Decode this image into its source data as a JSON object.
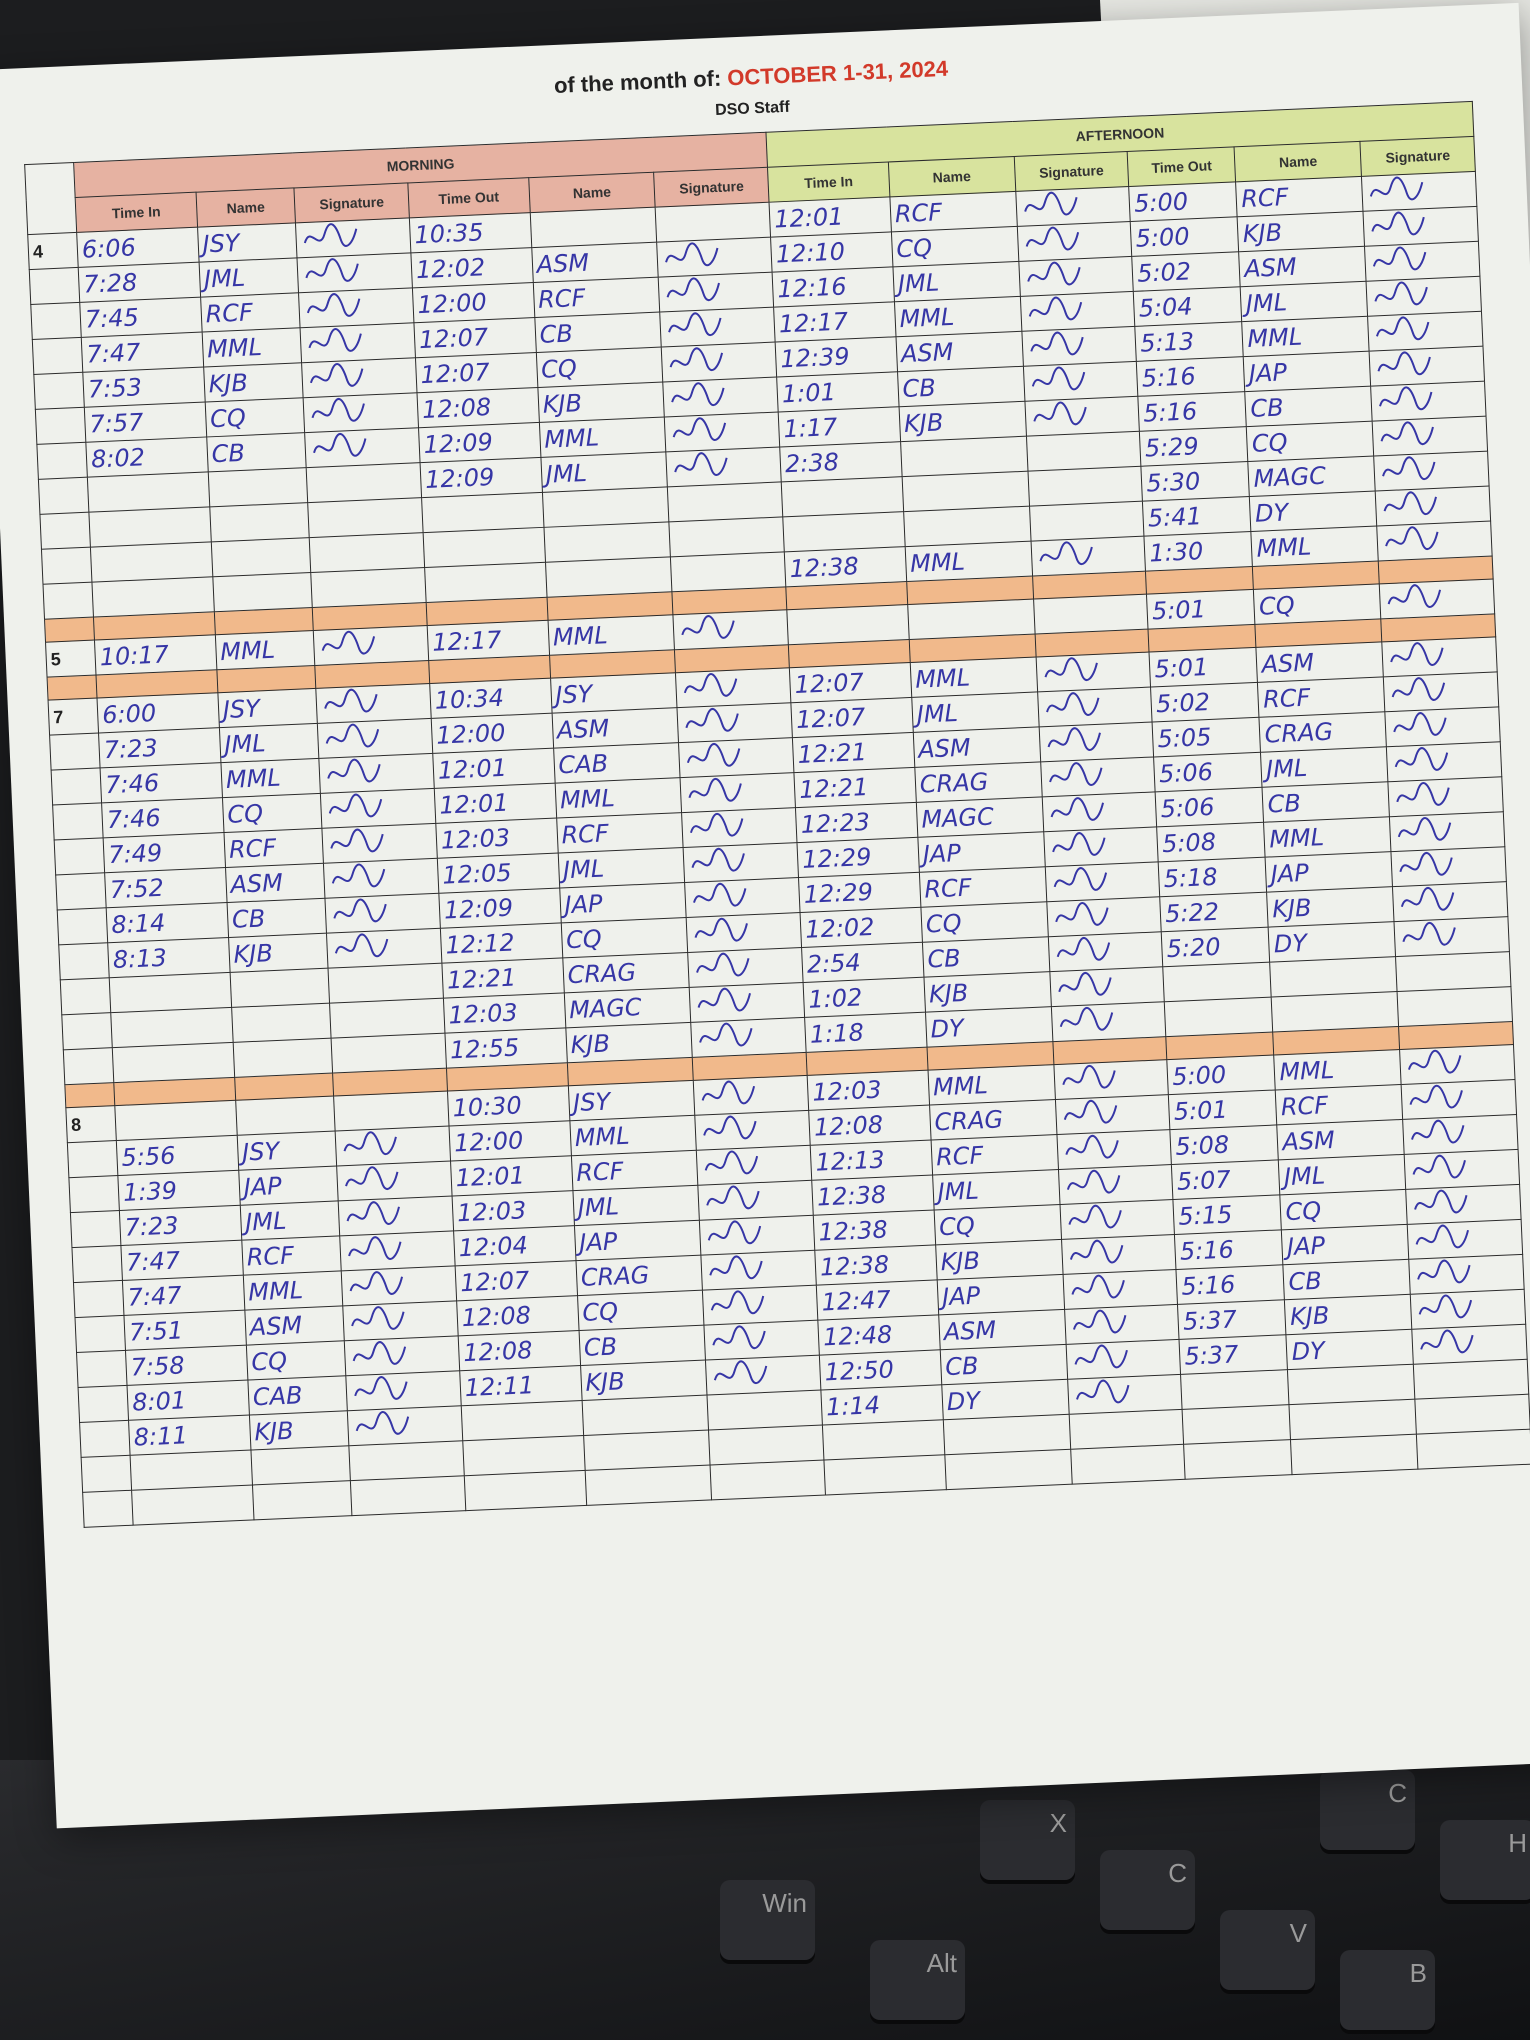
{
  "header": {
    "title_prefix": "of the month of:",
    "month": "OCTOBER 1-31, 2024",
    "subtitle": "DSO Staff"
  },
  "sections": {
    "morning": "MORNING",
    "afternoon": "AFTERNOON"
  },
  "columns": [
    "Time In",
    "Name",
    "Signature",
    "Time Out",
    "Name",
    "Signature",
    "Time In",
    "Name",
    "Signature",
    "Time Out",
    "Name",
    "Signature"
  ],
  "colors": {
    "morning": "#e6b2a2",
    "afternoon": "#d8e39e",
    "band": "#f1b98b",
    "ink": "#3636a6"
  },
  "days": [
    {
      "day": "4",
      "rows": [
        [
          "6:06",
          "JSY",
          "10:35",
          "",
          "12:01",
          "RCF",
          "5:00",
          "RCF"
        ],
        [
          "7:28",
          "JML",
          "12:02",
          "ASM",
          "12:10",
          "CQ",
          "5:00",
          "KJB"
        ],
        [
          "7:45",
          "RCF",
          "12:00",
          "RCF",
          "12:16",
          "JML",
          "5:02",
          "ASM"
        ],
        [
          "7:47",
          "MML",
          "12:07",
          "CB",
          "12:17",
          "MML",
          "5:04",
          "JML"
        ],
        [
          "7:53",
          "KJB",
          "12:07",
          "CQ",
          "12:39",
          "ASM",
          "5:13",
          "MML"
        ],
        [
          "7:57",
          "CQ",
          "12:08",
          "KJB",
          "1:01",
          "CB",
          "5:16",
          "JAP"
        ],
        [
          "8:02",
          "CB",
          "12:09",
          "MML",
          "1:17",
          "KJB",
          "5:16",
          "CB"
        ],
        [
          "",
          "",
          "12:09",
          "JML",
          "2:38",
          "",
          "5:29",
          "CQ"
        ],
        [
          "",
          "",
          "",
          "",
          "",
          "",
          "5:30",
          "MAGC"
        ],
        [
          "",
          "",
          "",
          "",
          "",
          "",
          "5:41",
          "DY"
        ],
        [
          "",
          "",
          "",
          "",
          "12:38",
          "MML",
          "1:30",
          "MML"
        ]
      ]
    },
    {
      "day": "5",
      "rows": [
        [
          "10:17",
          "MML",
          "12:17",
          "MML",
          "",
          "",
          "5:01",
          "CQ"
        ]
      ]
    },
    {
      "day": "7",
      "rows": [
        [
          "6:00",
          "JSY",
          "10:34",
          "JSY",
          "12:07",
          "MML",
          "5:01",
          "ASM"
        ],
        [
          "7:23",
          "JML",
          "12:00",
          "ASM",
          "12:07",
          "JML",
          "5:02",
          "RCF"
        ],
        [
          "7:46",
          "MML",
          "12:01",
          "CAB",
          "12:21",
          "ASM",
          "5:05",
          "CRAG"
        ],
        [
          "7:46",
          "CQ",
          "12:01",
          "MML",
          "12:21",
          "CRAG",
          "5:06",
          "JML"
        ],
        [
          "7:49",
          "RCF",
          "12:03",
          "RCF",
          "12:23",
          "MAGC",
          "5:06",
          "CB"
        ],
        [
          "7:52",
          "ASM",
          "12:05",
          "JML",
          "12:29",
          "JAP",
          "5:08",
          "MML"
        ],
        [
          "8:14",
          "CB",
          "12:09",
          "JAP",
          "12:29",
          "RCF",
          "5:18",
          "JAP"
        ],
        [
          "8:13",
          "KJB",
          "12:12",
          "CQ",
          "12:02",
          "CQ",
          "5:22",
          "KJB"
        ],
        [
          "",
          "",
          "12:21",
          "CRAG",
          "2:54",
          "CB",
          "5:20",
          "DY"
        ],
        [
          "",
          "",
          "12:03",
          "MAGC",
          "1:02",
          "KJB",
          "",
          ""
        ],
        [
          "",
          "",
          "12:55",
          "KJB",
          "1:18",
          "DY",
          "",
          ""
        ]
      ]
    },
    {
      "day": "8",
      "rows": [
        [
          "",
          "",
          "10:30",
          "JSY",
          "12:03",
          "MML",
          "5:00",
          "MML"
        ],
        [
          "5:56",
          "JSY",
          "12:00",
          "MML",
          "12:08",
          "CRAG",
          "5:01",
          "RCF"
        ],
        [
          "1:39",
          "JAP",
          "12:01",
          "RCF",
          "12:13",
          "RCF",
          "5:08",
          "ASM"
        ],
        [
          "7:23",
          "JML",
          "12:03",
          "JML",
          "12:38",
          "JML",
          "5:07",
          "JML"
        ],
        [
          "7:47",
          "RCF",
          "12:04",
          "JAP",
          "12:38",
          "CQ",
          "5:15",
          "CQ"
        ],
        [
          "7:47",
          "MML",
          "12:07",
          "CRAG",
          "12:38",
          "KJB",
          "5:16",
          "JAP"
        ],
        [
          "7:51",
          "ASM",
          "12:08",
          "CQ",
          "12:47",
          "JAP",
          "5:16",
          "CB"
        ],
        [
          "7:58",
          "CQ",
          "12:08",
          "CB",
          "12:48",
          "ASM",
          "5:37",
          "KJB"
        ],
        [
          "8:01",
          "CAB",
          "12:11",
          "KJB",
          "12:50",
          "CB",
          "5:37",
          "DY"
        ],
        [
          "8:11",
          "KJB",
          "",
          "",
          "1:14",
          "DY",
          "",
          ""
        ],
        [
          "",
          "",
          "",
          "",
          "",
          "",
          "",
          ""
        ],
        [
          "",
          "",
          "",
          "",
          "",
          "",
          "",
          ""
        ]
      ]
    }
  ],
  "keyboard": {
    "keys": [
      "Win",
      "Alt",
      "X",
      "C",
      "V",
      "B",
      "C",
      "H"
    ]
  }
}
